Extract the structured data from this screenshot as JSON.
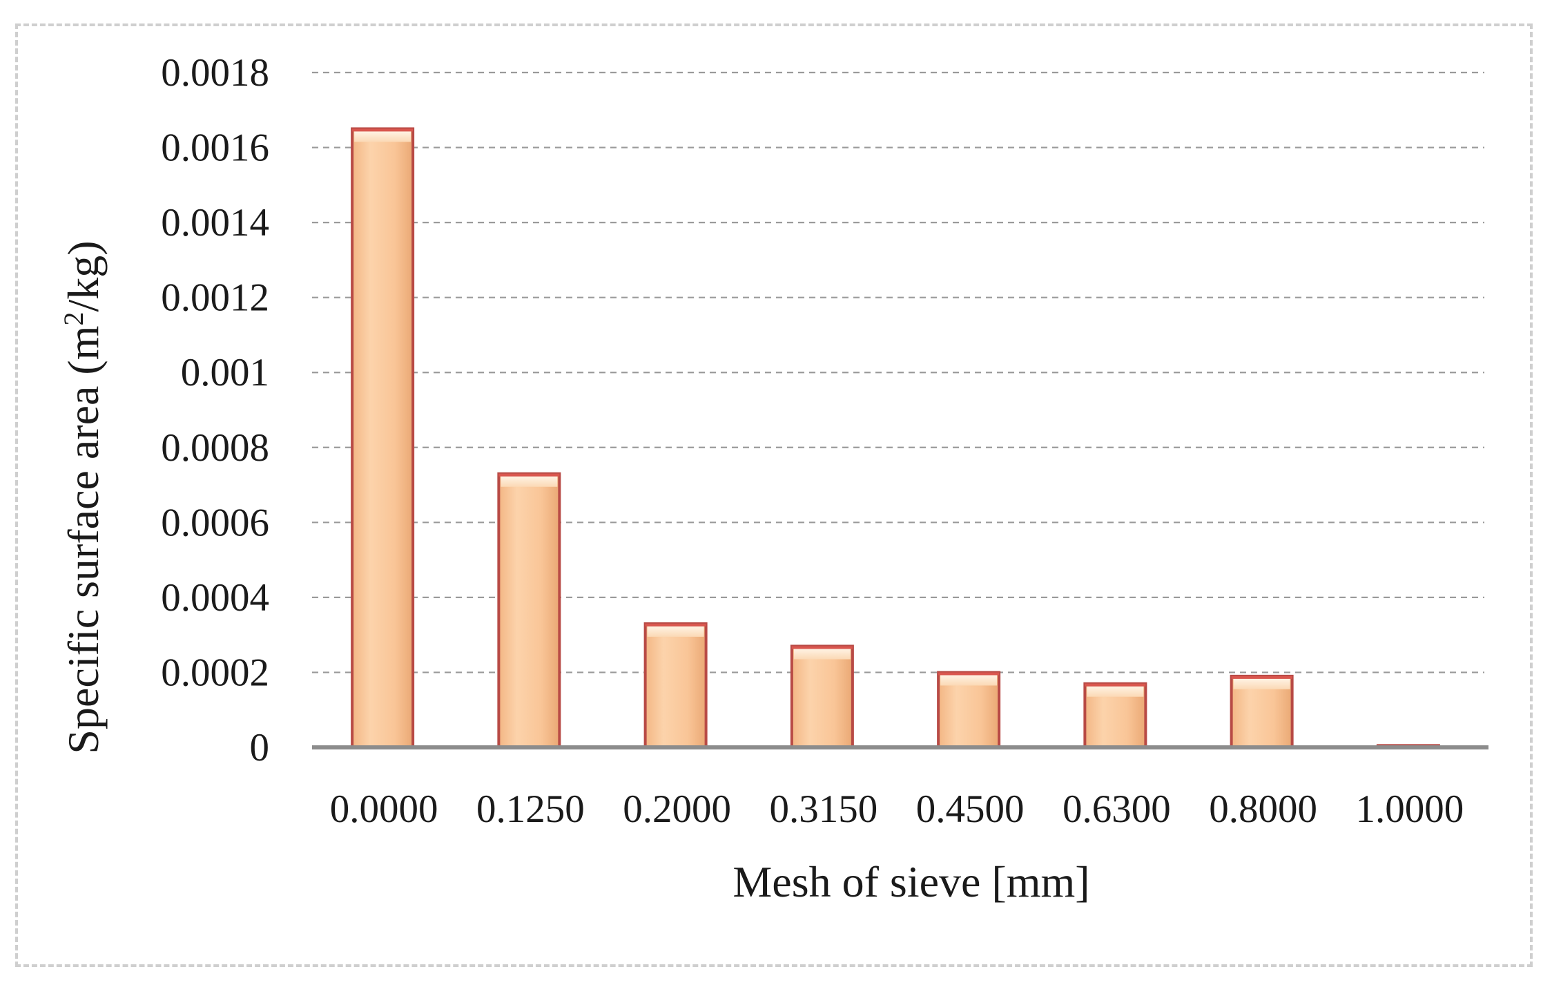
{
  "chart_data": {
    "type": "bar",
    "title": "",
    "xlabel": "Mesh of sieve [mm]",
    "ylabel": {
      "main": "Specific surface area (m",
      "superscript": "2",
      "unit_tail": "/kg)"
    },
    "categories": [
      "0.0000",
      "0.1250",
      "0.2000",
      "0.3150",
      "0.4500",
      "0.6300",
      "0.8000",
      "1.0000"
    ],
    "values": [
      0.00165,
      0.00073,
      0.00033,
      0.00027,
      0.0002,
      0.00017,
      0.00019,
      5e-06
    ],
    "ylim": [
      0,
      0.0018
    ],
    "yticks": [
      {
        "value": 0,
        "label": "0"
      },
      {
        "value": 0.0002,
        "label": "0.0002"
      },
      {
        "value": 0.0004,
        "label": "0.0004"
      },
      {
        "value": 0.0006,
        "label": "0.0006"
      },
      {
        "value": 0.0008,
        "label": "0.0008"
      },
      {
        "value": 0.001,
        "label": "0.001"
      },
      {
        "value": 0.0012,
        "label": "0.0012"
      },
      {
        "value": 0.0014,
        "label": "0.0014"
      },
      {
        "value": 0.0016,
        "label": "0.0016"
      },
      {
        "value": 0.0018,
        "label": "0.0018"
      }
    ],
    "grid": "horizontal dashed",
    "legend": "none",
    "colors": {
      "bar_fill": "#f9c799",
      "bar_fill_light": "#fde2c5",
      "bar_edge": "#b84a45",
      "bar_top": "#d9564e",
      "grid": "#9a9a9a",
      "axis": "#8c8c8c",
      "frame": "#cfcfcf"
    }
  }
}
